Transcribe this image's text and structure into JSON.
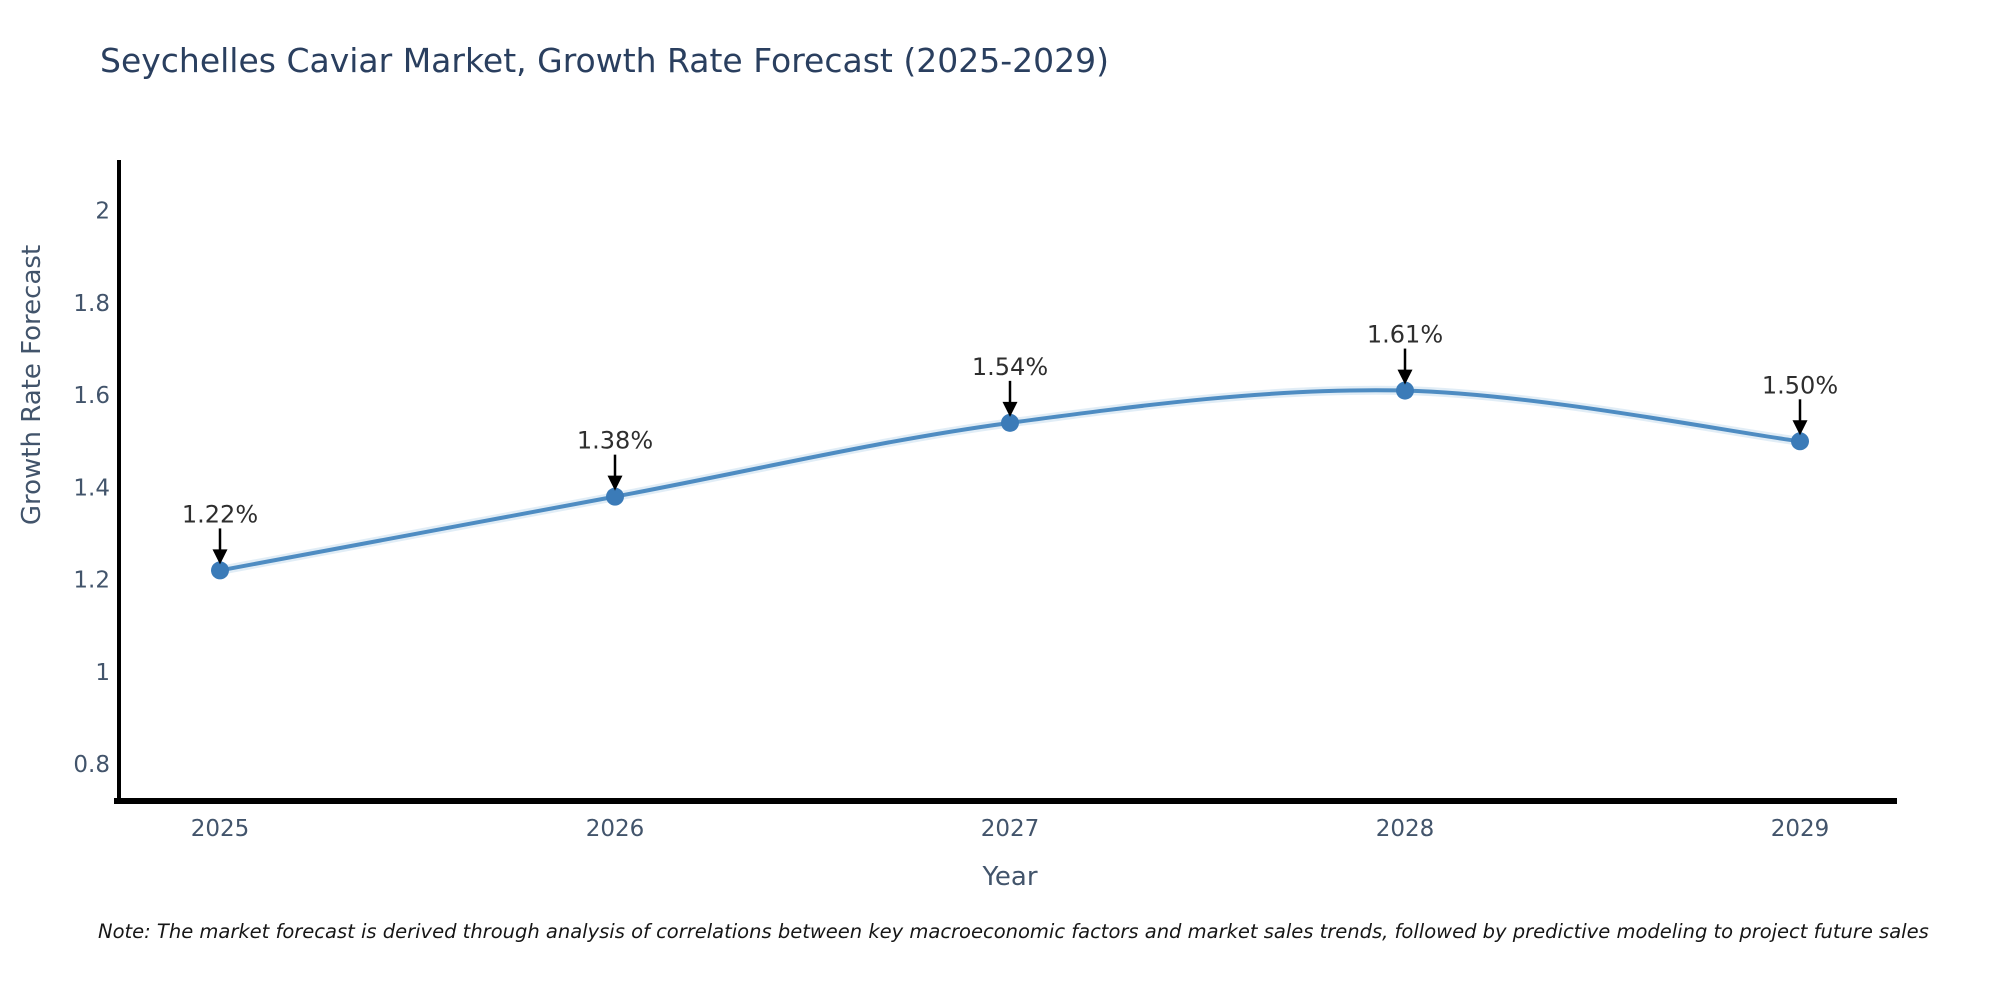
{
  "title": "Seychelles Caviar Market, Growth Rate Forecast (2025-2029)",
  "note": "Note: The market forecast is derived through analysis of correlations between key macroeconomic factors and market sales trends, followed by predictive modeling to project future sales",
  "chart_data": {
    "type": "line",
    "title": "Seychelles Caviar Market, Growth Rate Forecast (2025-2029)",
    "xlabel": "Year",
    "ylabel": "Growth Rate Forecast",
    "categories": [
      "2025",
      "2026",
      "2027",
      "2028",
      "2029"
    ],
    "x": [
      2025,
      2026,
      2027,
      2028,
      2029
    ],
    "values": [
      1.22,
      1.38,
      1.54,
      1.61,
      1.5
    ],
    "annotations": [
      "1.22%",
      "1.38%",
      "1.54%",
      "1.61%",
      "1.50%"
    ],
    "ytick_labels": [
      "0.8",
      "1",
      "1.2",
      "1.4",
      "1.6",
      "1.8",
      "2"
    ],
    "yticks": [
      0.8,
      1.0,
      1.2,
      1.4,
      1.6,
      1.8,
      2.0
    ],
    "ylim": [
      0.72,
      2.11
    ],
    "line_shape": "spline",
    "grid": false,
    "legend": "none",
    "colors": {
      "line": "#4e8cc2",
      "line_halo": "#bcd7ec",
      "marker": "#3b7bb8",
      "axis": "#000000",
      "tick_text": "#42546b",
      "title_text": "#2a3f5f",
      "annotation_text": "#2e2e2e",
      "annotation_arrow": "#000000"
    }
  }
}
